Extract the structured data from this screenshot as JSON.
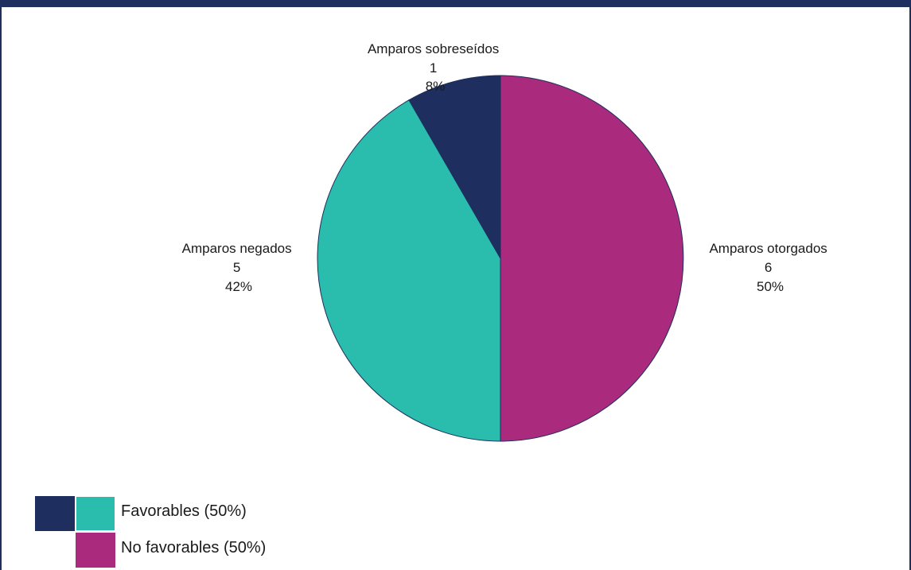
{
  "chart_data": {
    "type": "pie",
    "title": "",
    "slices": [
      {
        "label": "Amparos otorgados",
        "value": 6,
        "percent": "50%",
        "color": "#aa2a7d"
      },
      {
        "label": "Amparos negados",
        "value": 5,
        "percent": "42%",
        "color": "#2abcac"
      },
      {
        "label": "Amparos sobreseídos",
        "value": 1,
        "percent": "8%",
        "color": "#1e2f5f"
      }
    ],
    "legend": {
      "placement": "bottom-left",
      "entries": [
        {
          "label": "Favorables (50%)",
          "colors": [
            "#1e2f5f",
            "#2abcac"
          ]
        },
        {
          "label": "No favorables (50%)",
          "colors": [
            "#aa2a7d"
          ]
        }
      ]
    }
  },
  "colors": {
    "frame": "#1e2f5f"
  }
}
